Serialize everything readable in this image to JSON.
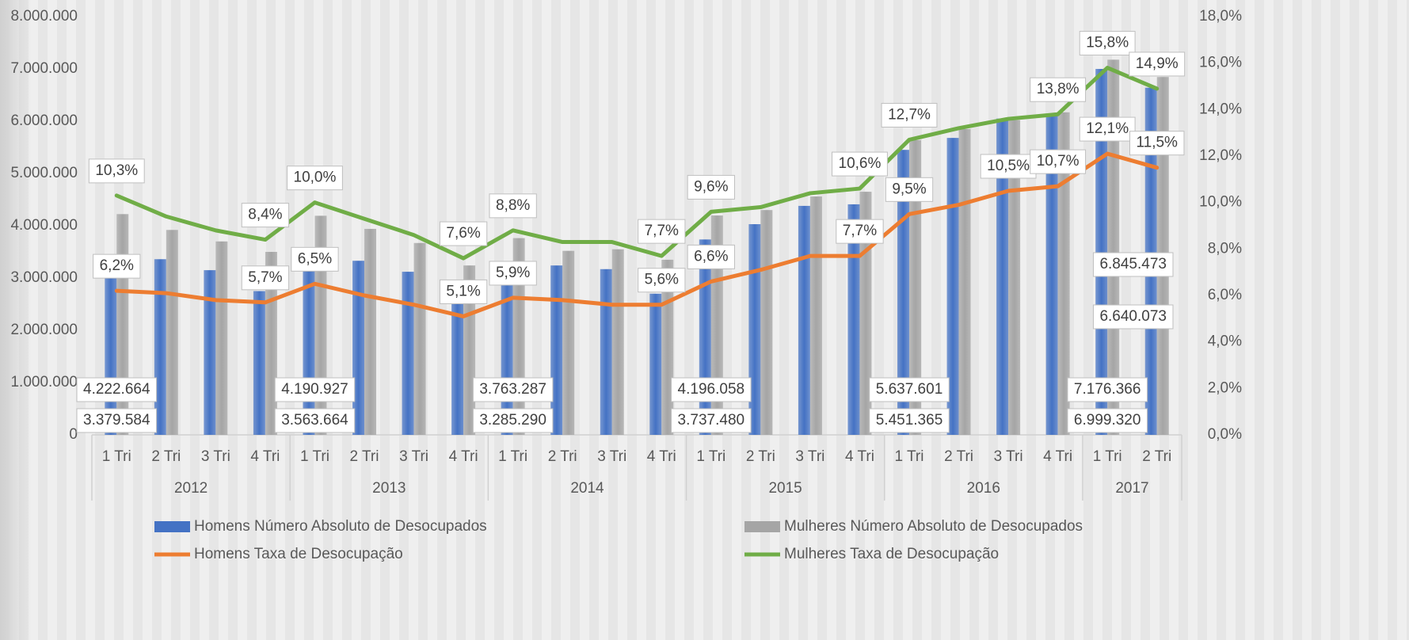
{
  "chart_data": {
    "type": "bar-line",
    "categories": [
      "1 Tri",
      "2 Tri",
      "3 Tri",
      "4 Tri",
      "1 Tri",
      "2 Tri",
      "3 Tri",
      "4 Tri",
      "1 Tri",
      "2 Tri",
      "3 Tri",
      "4 Tri",
      "1 Tri",
      "2 Tri",
      "3 Tri",
      "4 Tri",
      "1 Tri",
      "2 Tri",
      "3 Tri",
      "4 Tri",
      "1 Tri",
      "2 Tri"
    ],
    "groups": [
      {
        "name": "2012",
        "span": 4
      },
      {
        "name": "2013",
        "span": 4
      },
      {
        "name": "2014",
        "span": 4
      },
      {
        "name": "2015",
        "span": 4
      },
      {
        "name": "2016",
        "span": 4
      },
      {
        "name": "2017",
        "span": 2
      }
    ],
    "ylim": [
      0,
      8000000
    ],
    "yticks": [
      {
        "value": 0,
        "label": "0"
      },
      {
        "value": 1000000,
        "label": "1.000.000"
      },
      {
        "value": 2000000,
        "label": "2.000.000"
      },
      {
        "value": 3000000,
        "label": "3.000.000"
      },
      {
        "value": 4000000,
        "label": "4.000.000"
      },
      {
        "value": 5000000,
        "label": "5.000.000"
      },
      {
        "value": 6000000,
        "label": "6.000.000"
      },
      {
        "value": 7000000,
        "label": "7.000.000"
      },
      {
        "value": 8000000,
        "label": "8.000.000"
      }
    ],
    "y2lim": [
      0,
      18
    ],
    "y2ticks": [
      {
        "value": 0,
        "label": "0,0%"
      },
      {
        "value": 2,
        "label": "2,0%"
      },
      {
        "value": 4,
        "label": "4,0%"
      },
      {
        "value": 6,
        "label": "6,0%"
      },
      {
        "value": 8,
        "label": "8,0%"
      },
      {
        "value": 10,
        "label": "10,0%"
      },
      {
        "value": 12,
        "label": "12,0%"
      },
      {
        "value": 14,
        "label": "14,0%"
      },
      {
        "value": 16,
        "label": "16,0%"
      },
      {
        "value": 18,
        "label": "18,0%"
      }
    ],
    "series": [
      {
        "name": "Homens Número Absoluto de Desocupados",
        "kind": "bar",
        "color": "#4472c4",
        "values": [
          3379584,
          3360000,
          3150000,
          2750000,
          3563664,
          3330000,
          3120000,
          2500000,
          3285290,
          3240000,
          3170000,
          2700000,
          3737480,
          4030000,
          4380000,
          4410000,
          5451365,
          5680000,
          6050000,
          6100000,
          6999320,
          6640073
        ],
        "value_labels": [
          "3.379.584",
          null,
          null,
          null,
          "3.563.664",
          null,
          null,
          null,
          "3.285.290",
          null,
          null,
          null,
          "3.737.480",
          null,
          null,
          null,
          "5.451.365",
          null,
          null,
          null,
          "6.999.320",
          "6.640.073"
        ]
      },
      {
        "name": "Mulheres Número Absoluto de Desocupados",
        "kind": "bar",
        "color": "#a5a5a5",
        "values": [
          4222664,
          3920000,
          3700000,
          3500000,
          4190927,
          3940000,
          3670000,
          3240000,
          3763287,
          3520000,
          3550000,
          3350000,
          4196058,
          4300000,
          4560000,
          4650000,
          5637601,
          5850000,
          6020000,
          6170000,
          7176366,
          6845473
        ],
        "value_labels": [
          "4.222.664",
          null,
          null,
          null,
          "4.190.927",
          null,
          null,
          null,
          "3.763.287",
          null,
          null,
          null,
          "4.196.058",
          null,
          null,
          null,
          "5.637.601",
          null,
          null,
          null,
          "7.176.366",
          "6.845.473"
        ]
      },
      {
        "name": "Homens Taxa de Desocupação",
        "kind": "line",
        "axis": "y2",
        "color": "#ed7d31",
        "values": [
          6.2,
          6.1,
          5.8,
          5.7,
          6.5,
          6.0,
          5.6,
          5.1,
          5.9,
          5.8,
          5.6,
          5.6,
          6.6,
          7.1,
          7.7,
          7.7,
          9.5,
          9.9,
          10.5,
          10.7,
          12.1,
          11.5
        ],
        "value_labels": [
          "6,2%",
          null,
          null,
          "5,7%",
          "6,5%",
          null,
          null,
          "5,1%",
          "5,9%",
          null,
          null,
          "5,6%",
          "6,6%",
          null,
          null,
          "7,7%",
          "9,5%",
          null,
          "10,5%",
          "10,7%",
          "12,1%",
          "11,5%"
        ]
      },
      {
        "name": "Mulheres Taxa de Desocupação",
        "kind": "line",
        "axis": "y2",
        "color": "#70ad47",
        "values": [
          10.3,
          9.4,
          8.8,
          8.4,
          10.0,
          9.3,
          8.6,
          7.6,
          8.8,
          8.3,
          8.3,
          7.7,
          9.6,
          9.8,
          10.4,
          10.6,
          12.7,
          13.2,
          13.6,
          13.8,
          15.8,
          14.9
        ],
        "value_labels": [
          "10,3%",
          null,
          null,
          "8,4%",
          "10,0%",
          null,
          null,
          "7,6%",
          "8,8%",
          null,
          null,
          "7,7%",
          "9,6%",
          null,
          null,
          "10,6%",
          "12,7%",
          null,
          null,
          "13,8%",
          "15,8%",
          "14,9%"
        ]
      }
    ]
  }
}
